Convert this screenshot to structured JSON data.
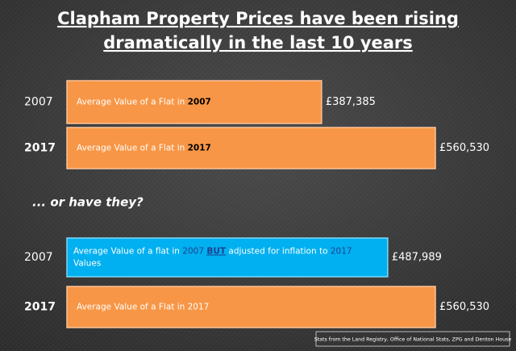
{
  "chart_data": {
    "type": "bar",
    "title": [
      "Clapham Property Prices have been rising",
      "dramatically in the last 10 years"
    ],
    "categories": [
      "2007",
      "2017",
      "2007",
      "2017"
    ],
    "category_bold": [
      false,
      true,
      false,
      true
    ],
    "values": [
      387385,
      560530,
      487989,
      560530
    ],
    "value_labels": [
      "£387,385",
      "£560,530",
      "£487,989",
      "£560,530"
    ],
    "colors": [
      "#f79646",
      "#f79646",
      "#00b0f0",
      "#f79646"
    ],
    "bar_texts": [
      [
        [
          {
            "text": "Average Value of a Flat in "
          },
          {
            "text": "2007",
            "style": "bold"
          }
        ]
      ],
      [
        [
          {
            "text": "Average Value of a Flat in "
          },
          {
            "text": "2017",
            "style": "bold"
          }
        ]
      ],
      [
        [
          {
            "text": "Average Value of a flat in "
          },
          {
            "text": "2007",
            "style": "blue"
          },
          {
            "text": " "
          },
          {
            "text": "BUT",
            "style": "bold-underline"
          },
          {
            "text": " adjusted for inflation to "
          },
          {
            "text": "2017",
            "style": "blue"
          }
        ],
        [
          {
            "text": "Values"
          }
        ]
      ],
      [
        [
          {
            "text": "Average Value of a Flat in 2017"
          }
        ]
      ]
    ],
    "annotation": "... or have they?",
    "source": "Stats from the Land Registry, Office of National Stats, ZPG and Denton House"
  }
}
